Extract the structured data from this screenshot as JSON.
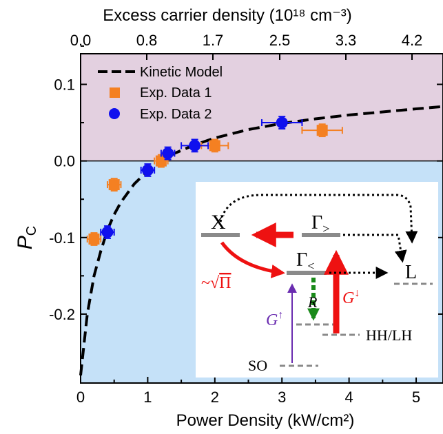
{
  "chart_data": {
    "type": "scatter",
    "xlabel": "Power Density (kW/cm²)",
    "ylabel": "P_C",
    "x2label": "Excess carrier density (10¹⁸ cm⁻³)",
    "xlim": [
      0,
      5.4
    ],
    "ylim": [
      -0.29,
      0.14
    ],
    "x_ticks": [
      0,
      1,
      2,
      3,
      4,
      5
    ],
    "y_ticks": [
      -0.2,
      -0.1,
      0.0,
      0.1
    ],
    "x_tick_labels": [
      "0",
      "1",
      "2",
      "3",
      "4",
      "5"
    ],
    "y_tick_labels": [
      "-0.2",
      "-0.1",
      "0.0",
      "0.1"
    ],
    "x2_ticks": [
      0.0,
      0.8,
      1.7,
      2.5,
      3.3,
      4.2
    ],
    "x2_tick_labels": [
      "0.0",
      "0.8",
      "1.7",
      "2.5",
      "3.3",
      "4.2"
    ],
    "grid": false,
    "legend_position": "top-left",
    "colors": {
      "region_positive": "#e3d0e0",
      "region_negative": "#c5e1f8",
      "exp1": "#f48022",
      "exp2": "#1010ee",
      "model": "#000000",
      "inset_red": "#ee1111",
      "inset_green": "#1a8a1a",
      "inset_purple": "#6a2cb0",
      "inset_gray": "#8a8a8a"
    },
    "series": [
      {
        "name": "Kinetic Model",
        "kind": "line",
        "style": "dashed",
        "x": [
          0.0,
          0.1,
          0.2,
          0.3,
          0.4,
          0.5,
          0.6,
          0.8,
          1.0,
          1.2,
          1.4,
          1.7,
          2.0,
          2.5,
          3.0,
          3.5,
          4.0,
          4.5,
          5.0,
          5.4
        ],
        "y": [
          -0.28,
          -0.2,
          -0.15,
          -0.118,
          -0.09,
          -0.07,
          -0.054,
          -0.03,
          -0.013,
          0.0,
          0.01,
          0.021,
          0.03,
          0.041,
          0.049,
          0.055,
          0.06,
          0.064,
          0.068,
          0.071
        ]
      },
      {
        "name": "Exp. Data 1",
        "kind": "scatter",
        "marker": "square",
        "x": [
          0.2,
          0.5,
          1.2,
          2.0,
          3.6
        ],
        "y": [
          -0.102,
          -0.031,
          0.0,
          0.02,
          0.04
        ],
        "xerr": [
          0.1,
          0.1,
          0.1,
          0.2,
          0.3
        ],
        "yerr": [
          0.008,
          0.008,
          0.008,
          0.008,
          0.008
        ]
      },
      {
        "name": "Exp. Data 2",
        "kind": "scatter",
        "marker": "circle",
        "x": [
          0.4,
          1.0,
          1.3,
          1.7,
          3.0
        ],
        "y": [
          -0.093,
          -0.012,
          0.01,
          0.02,
          0.05
        ],
        "xerr": [
          0.1,
          0.1,
          0.1,
          0.2,
          0.3
        ],
        "yerr": [
          0.008,
          0.008,
          0.008,
          0.008,
          0.008
        ]
      }
    ],
    "inset": {
      "labels": {
        "x": "X",
        "gamma_upper_base": "Γ",
        "gamma_upper_sub": ">",
        "gamma_lower_base": "Γ",
        "gamma_lower_sub": "<",
        "l": "L",
        "sqrt_tilde": "~",
        "sqrt_radical": "√",
        "sqrt_pi": "Π",
        "r": "R",
        "g_up_base": "G",
        "g_up_sup": "↑",
        "g_down_base": "G",
        "g_down_sup": "↓",
        "hhlh": "HH/LH",
        "so": "SO"
      }
    }
  }
}
